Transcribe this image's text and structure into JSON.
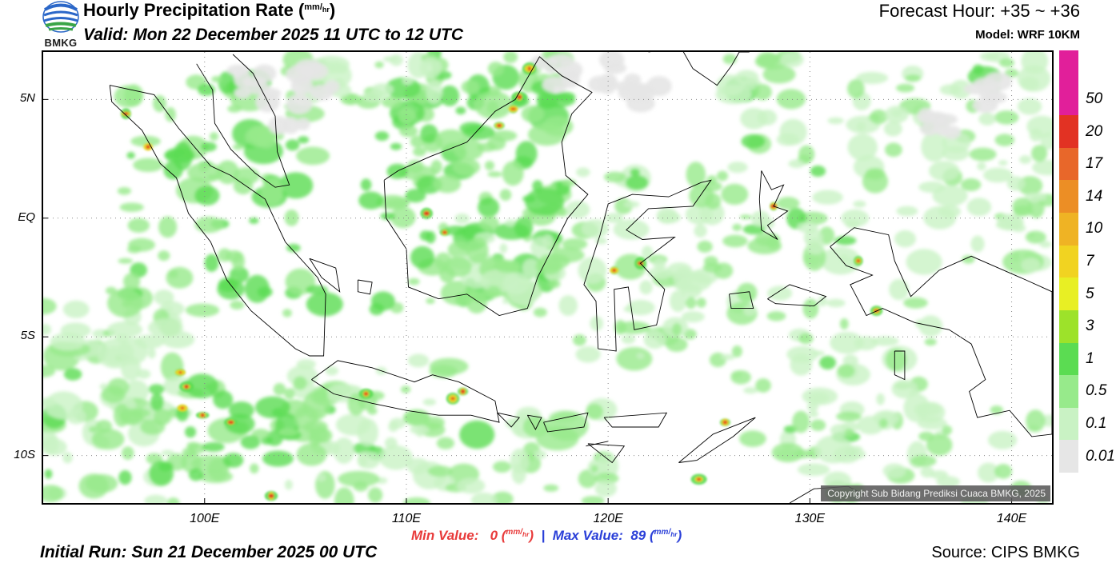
{
  "header": {
    "logo_text": "BMKG",
    "title": "Hourly Precipitation Rate (",
    "title_unit_num": "mm",
    "title_unit_den": "hr",
    "title_close": ")",
    "valid": "Valid: Mon 22 December 2025 11 UTC to 12 UTC",
    "forecast_hour": "Forecast Hour: +35 ~ +36",
    "model": "Model: WRF 10KM"
  },
  "map": {
    "lat_labels": [
      {
        "label": "5N",
        "lat": 5
      },
      {
        "label": "EQ",
        "lat": 0
      },
      {
        "label": "5S",
        "lat": -5
      },
      {
        "label": "10S",
        "lat": -10
      }
    ],
    "lon_labels": [
      {
        "label": "100E",
        "lon": 100
      },
      {
        "label": "110E",
        "lon": 110
      },
      {
        "label": "120E",
        "lon": 120
      },
      {
        "label": "130E",
        "lon": 130
      },
      {
        "label": "140E",
        "lon": 140
      }
    ],
    "extent": {
      "lon_min": 92,
      "lon_max": 142,
      "lat_min": -12,
      "lat_max": 7
    },
    "copyright": "Copyright Sub Bidang Prediksi Cuaca BMKG, 2025"
  },
  "colorbar": {
    "levels": [
      {
        "label": "0.01",
        "color": "#e6e6e6"
      },
      {
        "label": "0.1",
        "color": "#c9f2c4"
      },
      {
        "label": "0.5",
        "color": "#97ea8b"
      },
      {
        "label": "1",
        "color": "#5bdc52"
      },
      {
        "label": "3",
        "color": "#9de22a"
      },
      {
        "label": "5",
        "color": "#e8ef24"
      },
      {
        "label": "7",
        "color": "#f1d321"
      },
      {
        "label": "10",
        "color": "#efb324"
      },
      {
        "label": "14",
        "color": "#ec8e25"
      },
      {
        "label": "17",
        "color": "#e8672a"
      },
      {
        "label": "20",
        "color": "#e23223"
      },
      {
        "label": "50",
        "color": "#e11f9a"
      }
    ]
  },
  "footer": {
    "min_label": "Min Value:",
    "min_value": "0",
    "max_label": "Max Value:",
    "max_value": "89",
    "unit_num": "mm",
    "unit_den": "hr",
    "init_run": "Initial Run: Sun 21 December 2025 00 UTC",
    "source": "Source: CIPS BMKG"
  }
}
